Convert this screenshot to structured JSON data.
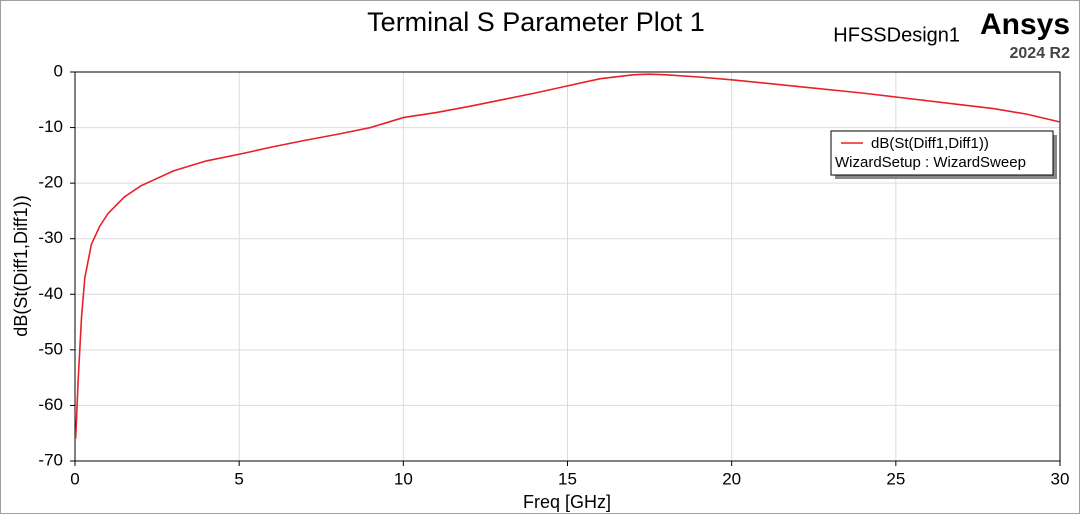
{
  "chart_data": {
    "type": "line",
    "title": "Terminal S Parameter Plot 1",
    "design_name": "HFSSDesign1",
    "brand": "Ansys",
    "version": "2024 R2",
    "x_label": "Freq [GHz]",
    "y_label": "dB(St(Diff1,Diff1))",
    "xlim": [
      0,
      30
    ],
    "ylim": [
      -70,
      0
    ],
    "xticks": [
      0,
      5,
      10,
      15,
      20,
      25,
      30
    ],
    "yticks": [
      0,
      -10,
      -20,
      -30,
      -40,
      -50,
      -60,
      -70
    ],
    "grid": true,
    "legend_position": "upper right",
    "x": [
      0.02,
      0.1,
      0.2,
      0.3,
      0.5,
      0.75,
      1,
      1.5,
      2,
      3,
      4,
      5,
      6,
      7,
      8,
      9,
      10,
      11,
      12,
      13,
      14,
      15,
      16,
      17,
      17.5,
      18,
      19,
      20,
      22,
      24,
      25,
      27,
      28,
      29,
      30
    ],
    "series": [
      {
        "name": "dB(St(Diff1,Diff1))",
        "setup": "WizardSetup : WizardSweep",
        "color": "#e8202a",
        "values": [
          -66,
          -55,
          -44,
          -37,
          -31,
          -27.8,
          -25.5,
          -22.5,
          -20.5,
          -17.8,
          -16,
          -14.8,
          -13.5,
          -12.3,
          -11.2,
          -10,
          -8.2,
          -7.3,
          -6.2,
          -5,
          -3.8,
          -2.5,
          -1.2,
          -0.5,
          -0.4,
          -0.5,
          -0.9,
          -1.4,
          -2.6,
          -3.8,
          -4.5,
          -5.9,
          -6.6,
          -7.6,
          -9
        ]
      }
    ]
  }
}
